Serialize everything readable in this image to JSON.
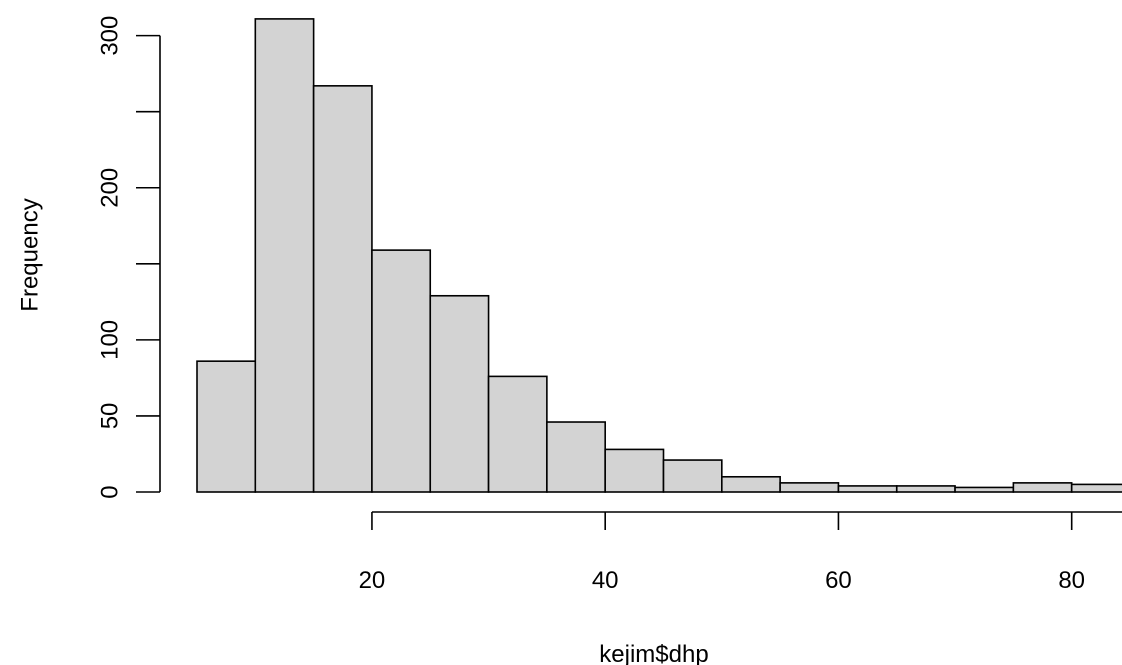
{
  "chart_data": {
    "type": "bar",
    "title": "",
    "xlabel": "kejim$dhp",
    "ylabel": "Frequency",
    "bin_width": 5,
    "bins": [
      {
        "start": 5,
        "end": 10,
        "count": 86
      },
      {
        "start": 10,
        "end": 15,
        "count": 311
      },
      {
        "start": 15,
        "end": 20,
        "count": 267
      },
      {
        "start": 20,
        "end": 25,
        "count": 159
      },
      {
        "start": 25,
        "end": 30,
        "count": 129
      },
      {
        "start": 30,
        "end": 35,
        "count": 76
      },
      {
        "start": 35,
        "end": 40,
        "count": 46
      },
      {
        "start": 40,
        "end": 45,
        "count": 28
      },
      {
        "start": 45,
        "end": 50,
        "count": 21
      },
      {
        "start": 50,
        "end": 55,
        "count": 10
      },
      {
        "start": 55,
        "end": 60,
        "count": 6
      },
      {
        "start": 60,
        "end": 65,
        "count": 4
      },
      {
        "start": 65,
        "end": 70,
        "count": 4
      },
      {
        "start": 70,
        "end": 75,
        "count": 3
      },
      {
        "start": 75,
        "end": 80,
        "count": 6
      },
      {
        "start": 80,
        "end": 85,
        "count": 5
      }
    ],
    "x_ticks": [
      20,
      40,
      60,
      80
    ],
    "x_tick_labels": [
      "20",
      "40",
      "60",
      "80"
    ],
    "y_ticks": [
      0,
      50,
      100,
      150,
      200,
      250,
      300
    ],
    "y_tick_labels": [
      "0",
      "50",
      "100",
      "",
      "200",
      "",
      "300"
    ],
    "xlim": [
      5,
      85
    ],
    "ylim": [
      0,
      311
    ],
    "grid": false,
    "colors": {
      "bar_fill": "#d3d3d3",
      "bar_stroke": "#000000"
    }
  }
}
